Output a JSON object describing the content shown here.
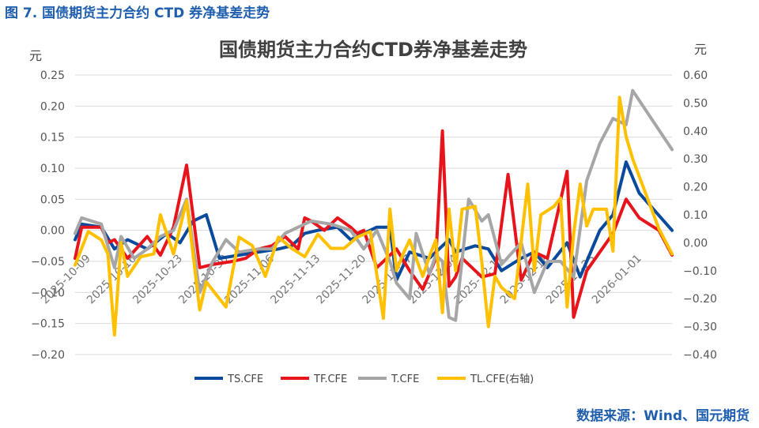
{
  "header": {
    "figure_title": "图 7. 国债期货主力合约 CTD 券净基差走势"
  },
  "footer": {
    "source": "数据来源：Wind、国元期货"
  },
  "colors": {
    "header_blue": "#1f5fae",
    "grid": "#d9d9d9"
  },
  "chart_data": {
    "type": "line",
    "title": "国债期货主力合约CTD券净基差走势",
    "ylabel": "元",
    "y2label": "元",
    "ylim": [
      -0.2,
      0.25
    ],
    "y2lim": [
      -0.4,
      0.6
    ],
    "yticks": [
      "0.25",
      "0.20",
      "0.15",
      "0.10",
      "0.05",
      "0.00",
      "−0.05",
      "−0.10",
      "−0.15",
      "−0.20"
    ],
    "y2ticks": [
      "0.60",
      "0.50",
      "0.40",
      "0.30",
      "0.20",
      "0.10",
      "0.00",
      "−0.10",
      "−0.20",
      "−0.30",
      "−0.40"
    ],
    "xticks": [
      "2025-10-09",
      "2025-10-16",
      "2025-10-23",
      "2025-10-30",
      "2025-11-06",
      "2025-11-13",
      "2025-11-20",
      "2025-11-27",
      "2025-12-04",
      "2025-12-11",
      "2025-12-18",
      "2025-12-25",
      "2026-01-01"
    ],
    "grid": true,
    "legend_position": "bottom",
    "x_start": "2025-10-09",
    "x_end": "2026-01-08",
    "series": [
      {
        "name": "TS.CFE",
        "color": "#0a4a9c",
        "axis": "left",
        "dates": [
          "2025-10-09",
          "2025-10-10",
          "2025-10-13",
          "2025-10-15",
          "2025-10-17",
          "2025-10-20",
          "2025-10-23",
          "2025-10-25",
          "2025-10-27",
          "2025-10-29",
          "2025-10-31",
          "2025-11-03",
          "2025-11-06",
          "2025-11-09",
          "2025-11-11",
          "2025-11-13",
          "2025-11-15",
          "2025-11-18",
          "2025-11-20",
          "2025-11-22",
          "2025-11-24",
          "2025-11-26",
          "2025-11-27",
          "2025-11-29",
          "2025-12-02",
          "2025-12-03",
          "2025-12-05",
          "2025-12-06",
          "2025-12-09",
          "2025-12-11",
          "2025-12-13",
          "2025-12-16",
          "2025-12-18",
          "2025-12-20",
          "2025-12-23",
          "2025-12-25",
          "2025-12-28",
          "2025-12-30",
          "2026-01-01",
          "2026-01-03",
          "2026-01-08"
        ],
        "values": [
          -0.015,
          0.01,
          0.005,
          -0.03,
          -0.015,
          -0.03,
          -0.005,
          -0.02,
          0.015,
          0.025,
          -0.045,
          -0.04,
          -0.035,
          -0.03,
          -0.025,
          -0.005,
          0.0,
          0.005,
          -0.015,
          -0.005,
          0.005,
          0.005,
          -0.08,
          -0.035,
          -0.045,
          -0.035,
          -0.015,
          -0.035,
          -0.025,
          -0.03,
          -0.065,
          -0.045,
          -0.035,
          -0.06,
          -0.02,
          -0.075,
          0.0,
          0.025,
          0.11,
          0.06,
          0.0
        ]
      },
      {
        "name": "TF.CFE",
        "color": "#e8141b",
        "axis": "left",
        "dates": [
          "2025-10-09",
          "2025-10-10",
          "2025-10-13",
          "2025-10-14",
          "2025-10-15",
          "2025-10-17",
          "2025-10-20",
          "2025-10-22",
          "2025-10-24",
          "2025-10-26",
          "2025-10-28",
          "2025-10-30",
          "2025-11-02",
          "2025-11-04",
          "2025-11-06",
          "2025-11-08",
          "2025-11-10",
          "2025-11-12",
          "2025-11-13",
          "2025-11-14",
          "2025-11-16",
          "2025-11-18",
          "2025-11-20",
          "2025-11-21",
          "2025-11-22",
          "2025-11-24",
          "2025-11-27",
          "2025-11-29",
          "2025-12-01",
          "2025-12-03",
          "2025-12-04",
          "2025-12-05",
          "2025-12-06",
          "2025-12-07",
          "2025-12-10",
          "2025-12-12",
          "2025-12-14",
          "2025-12-16",
          "2025-12-18",
          "2025-12-20",
          "2025-12-23",
          "2025-12-24",
          "2025-12-26",
          "2025-12-28",
          "2025-12-30",
          "2026-01-01",
          "2026-01-03",
          "2026-01-06",
          "2026-01-08"
        ],
        "values": [
          -0.045,
          0.005,
          0.005,
          -0.02,
          -0.015,
          -0.045,
          -0.01,
          -0.04,
          0.005,
          0.105,
          -0.06,
          -0.055,
          -0.05,
          -0.045,
          -0.03,
          -0.025,
          -0.01,
          -0.03,
          0.02,
          0.015,
          0.0,
          0.02,
          0.005,
          -0.005,
          0.0,
          -0.06,
          -0.03,
          -0.065,
          -0.095,
          -0.045,
          0.16,
          -0.09,
          -0.075,
          -0.045,
          -0.075,
          -0.07,
          0.09,
          -0.08,
          -0.035,
          -0.045,
          0.095,
          -0.14,
          -0.065,
          -0.035,
          -0.005,
          0.05,
          0.02,
          0.0,
          -0.04
        ]
      },
      {
        "name": "T.CFE",
        "color": "#a6a6a6",
        "axis": "left",
        "dates": [
          "2025-10-09",
          "2025-10-10",
          "2025-10-13",
          "2025-10-15",
          "2025-10-16",
          "2025-10-18",
          "2025-10-20",
          "2025-10-22",
          "2025-10-24",
          "2025-10-26",
          "2025-10-28",
          "2025-10-30",
          "2025-11-01",
          "2025-11-03",
          "2025-11-06",
          "2025-11-08",
          "2025-11-10",
          "2025-11-12",
          "2025-11-14",
          "2025-11-17",
          "2025-11-20",
          "2025-11-22",
          "2025-11-24",
          "2025-11-26",
          "2025-11-27",
          "2025-11-29",
          "2025-11-30",
          "2025-12-02",
          "2025-12-03",
          "2025-12-04",
          "2025-12-05",
          "2025-12-06",
          "2025-12-08",
          "2025-12-10",
          "2025-12-11",
          "2025-12-13",
          "2025-12-16",
          "2025-12-18",
          "2025-12-20",
          "2025-12-22",
          "2025-12-24",
          "2025-12-26",
          "2025-12-28",
          "2025-12-30",
          "2026-01-01",
          "2026-01-02",
          "2026-01-08"
        ],
        "values": [
          -0.005,
          0.02,
          0.01,
          -0.06,
          -0.01,
          -0.045,
          -0.03,
          -0.01,
          0.0,
          0.05,
          -0.1,
          -0.05,
          -0.015,
          -0.035,
          -0.03,
          -0.03,
          -0.005,
          0.005,
          0.015,
          0.01,
          0.0,
          -0.03,
          0.0,
          -0.05,
          -0.085,
          -0.11,
          -0.005,
          -0.07,
          -0.04,
          -0.05,
          -0.14,
          -0.145,
          0.05,
          0.015,
          0.025,
          -0.055,
          -0.02,
          -0.1,
          -0.05,
          -0.05,
          -0.075,
          0.08,
          0.14,
          0.18,
          0.17,
          0.225,
          0.13
        ]
      },
      {
        "name": "TL.CFE(右轴)",
        "color": "#ffc000",
        "axis": "right",
        "dates": [
          "2025-10-09",
          "2025-10-11",
          "2025-10-13",
          "2025-10-14",
          "2025-10-15",
          "2025-10-16",
          "2025-10-17",
          "2025-10-19",
          "2025-10-21",
          "2025-10-22",
          "2025-10-24",
          "2025-10-26",
          "2025-10-28",
          "2025-10-29",
          "2025-10-30",
          "2025-11-01",
          "2025-11-03",
          "2025-11-05",
          "2025-11-07",
          "2025-11-09",
          "2025-11-11",
          "2025-11-13",
          "2025-11-15",
          "2025-11-17",
          "2025-11-19",
          "2025-11-21",
          "2025-11-23",
          "2025-11-25",
          "2025-11-26",
          "2025-11-27",
          "2025-11-28",
          "2025-11-29",
          "2025-12-01",
          "2025-12-02",
          "2025-12-03",
          "2025-12-04",
          "2025-12-05",
          "2025-12-06",
          "2025-12-07",
          "2025-12-09",
          "2025-12-10",
          "2025-12-11",
          "2025-12-12",
          "2025-12-13",
          "2025-12-15",
          "2025-12-17",
          "2025-12-18",
          "2025-12-19",
          "2025-12-21",
          "2025-12-22",
          "2025-12-23",
          "2025-12-24",
          "2025-12-25",
          "2025-12-26",
          "2025-12-27",
          "2025-12-29",
          "2025-12-30",
          "2025-12-31",
          "2026-01-01",
          "2026-01-02",
          "2026-01-06",
          "2026-01-08"
        ],
        "values": [
          -0.08,
          0.04,
          0.01,
          -0.04,
          -0.33,
          0.0,
          -0.12,
          -0.05,
          -0.04,
          0.1,
          -0.04,
          0.15,
          -0.24,
          -0.14,
          -0.17,
          -0.23,
          0.02,
          -0.01,
          -0.12,
          0.02,
          -0.02,
          -0.05,
          0.03,
          -0.02,
          -0.02,
          0.02,
          0.04,
          -0.27,
          0.12,
          -0.1,
          -0.04,
          0.01,
          -0.12,
          -0.05,
          0.01,
          -0.25,
          0.12,
          -0.1,
          0.12,
          0.13,
          -0.07,
          -0.3,
          -0.12,
          -0.16,
          -0.2,
          0.21,
          -0.1,
          0.1,
          0.13,
          0.16,
          -0.23,
          0.03,
          0.21,
          0.06,
          0.12,
          0.12,
          -0.03,
          0.52,
          0.38,
          0.3,
          0.05,
          -0.04
        ]
      }
    ]
  }
}
